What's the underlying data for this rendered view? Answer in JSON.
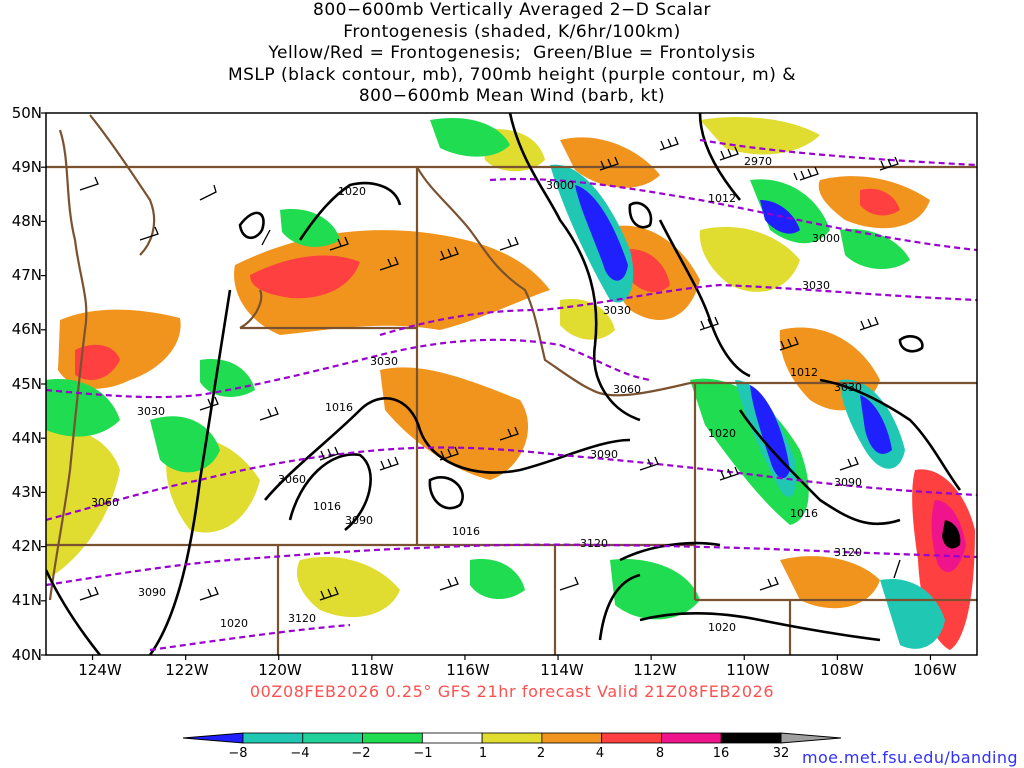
{
  "title": {
    "lines": [
      "800−600mb Vertically Averaged 2−D Scalar",
      "Frontogenesis (shaded, K/6hr/100km)",
      "Yellow/Red = Frontogenesis;  Green/Blue = Frontolysis",
      "MSLP (black contour, mb), 700mb height (purple contour, m) &",
      "800−600mb Mean Wind (barb, kt)"
    ]
  },
  "map": {
    "lat_labels": [
      "50N",
      "49N",
      "48N",
      "47N",
      "46N",
      "45N",
      "44N",
      "43N",
      "42N",
      "41N",
      "40N"
    ],
    "lon_labels": [
      "124W",
      "122W",
      "120W",
      "118W",
      "116W",
      "114W",
      "112W",
      "110W",
      "108W",
      "106W"
    ],
    "lat_range": [
      40,
      50
    ],
    "lon_range": [
      -125,
      -105
    ],
    "mslp_contour_labels": [
      "1020",
      "1012",
      "1012",
      "1016",
      "1016",
      "1016",
      "1020",
      "1016",
      "1020",
      "1020"
    ],
    "height_contour_labels": [
      "2970",
      "3000",
      "3000",
      "3030",
      "3030",
      "3030",
      "3030",
      "3030",
      "3060",
      "3060",
      "3060",
      "3090",
      "3090",
      "3090",
      "3090",
      "3120",
      "3120",
      "3120"
    ],
    "colors": {
      "mslp_contour": "#000000",
      "height_contour": "#9a00d0",
      "borders": "#7a5230",
      "barbs": "#000000"
    }
  },
  "valid_line": "00Z08FEB2026 0.25° GFS 21hr forecast Valid 21Z08FEB2026",
  "valid_color": "#ff5050",
  "colorbar": {
    "labels": [
      "−8",
      "−4",
      "−2",
      "−1",
      "1",
      "2",
      "4",
      "8",
      "16",
      "32"
    ],
    "colors": [
      "#2020ff",
      "#20c8b4",
      "#20d29a",
      "#20dc50",
      "#ffffff",
      "#e0dc30",
      "#f0941e",
      "#ff4040",
      "#f0148c",
      "#000000",
      "#a0a0a0"
    ]
  },
  "url": "moe.met.fsu.edu/banding",
  "url_color": "#3030ff"
}
